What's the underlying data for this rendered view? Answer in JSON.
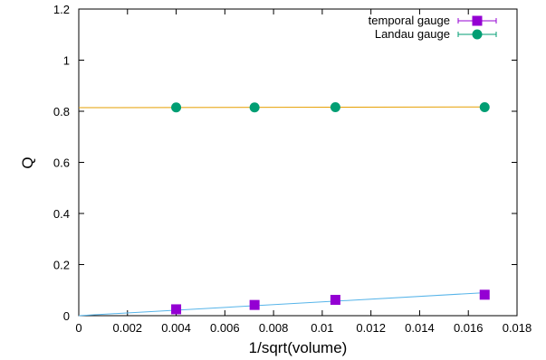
{
  "chart_data": {
    "type": "scatter",
    "title": "",
    "xlabel": "1/sqrt(volume)",
    "ylabel": "Q",
    "xlim": [
      0,
      0.018
    ],
    "ylim": [
      0,
      1.2
    ],
    "x_ticks": [
      0,
      0.002,
      0.004,
      0.006,
      0.008,
      0.01,
      0.012,
      0.014,
      0.016,
      0.018
    ],
    "x_tick_labels": [
      "0",
      "0.002",
      "0.004",
      "0.006",
      "0.008",
      "0.01",
      "0.012",
      "0.014",
      "0.016",
      "0.018"
    ],
    "y_ticks": [
      0,
      0.2,
      0.4,
      0.6,
      0.8,
      1,
      1.2
    ],
    "y_tick_labels": [
      "0",
      "0.2",
      "0.4",
      "0.6",
      "0.8",
      "1",
      "1.2"
    ],
    "grid": false,
    "legend_position": "top-right",
    "series": [
      {
        "name": "temporal gauge",
        "marker": "square",
        "color": "#9400d3",
        "x": [
          0.004,
          0.00722,
          0.01054,
          0.01667
        ],
        "y": [
          0.025,
          0.042,
          0.062,
          0.082
        ],
        "fit": {
          "color": "#56b4e9",
          "x": [
            0,
            0.01667
          ],
          "y": [
            0,
            0.09
          ]
        }
      },
      {
        "name": "Landau gauge",
        "marker": "circle",
        "color": "#009e73",
        "x": [
          0.004,
          0.00722,
          0.01054,
          0.01667
        ],
        "y": [
          0.815,
          0.815,
          0.816,
          0.816
        ],
        "fit": {
          "color": "#e69f00",
          "x": [
            0,
            0.01667
          ],
          "y": [
            0.814,
            0.817
          ]
        }
      }
    ]
  }
}
